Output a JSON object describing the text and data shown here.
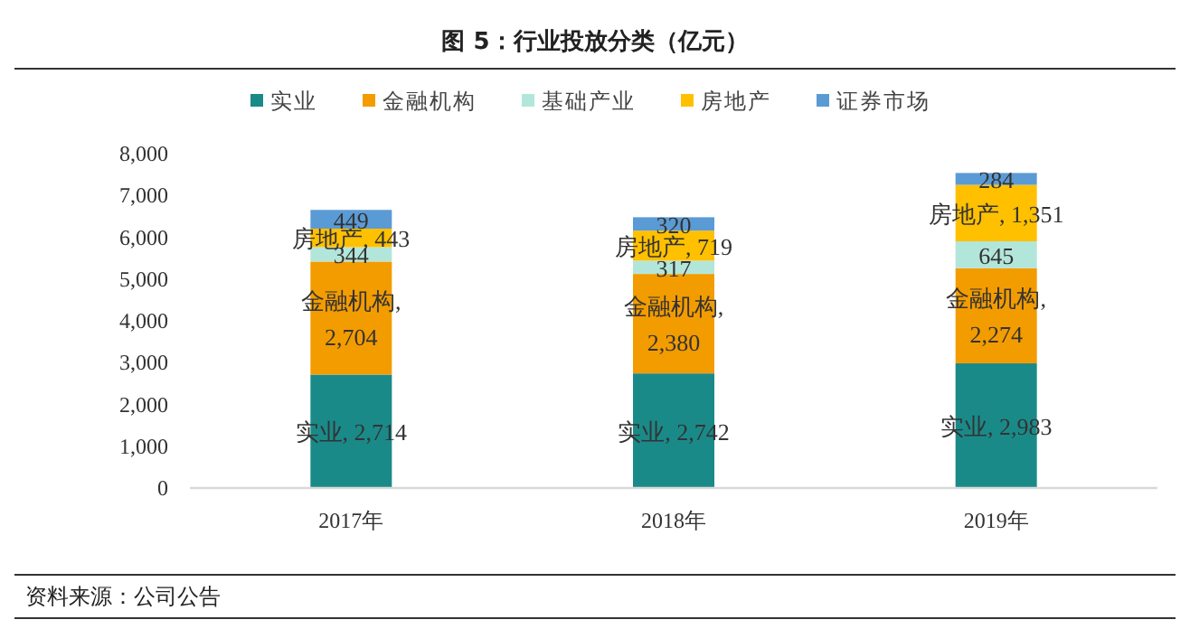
{
  "chart_data": {
    "type": "bar",
    "stacked": true,
    "title": "图 5：行业投放分类（亿元）",
    "categories": [
      "2017年",
      "2018年",
      "2019年"
    ],
    "series": [
      {
        "name": "实业",
        "color": "#1a8a89",
        "values": [
          2714,
          2742,
          2983
        ],
        "value_labels": [
          "实业, 2,714",
          "实业, 2,742",
          "实业, 2,983"
        ]
      },
      {
        "name": "金融机构",
        "color": "#f39c00",
        "values": [
          2704,
          2380,
          2274
        ],
        "value_labels": [
          "金融机构,\n2,704",
          "金融机构,\n2,380",
          "金融机构,\n2,274"
        ]
      },
      {
        "name": "基础产业",
        "color": "#b3e6da",
        "values": [
          344,
          317,
          645
        ],
        "value_labels": [
          "344",
          "317",
          "645"
        ]
      },
      {
        "name": "房地产",
        "color": "#ffc000",
        "values": [
          443,
          719,
          1351
        ],
        "value_labels": [
          "房地产, 443",
          "房地产, 719",
          "房地产, 1,351"
        ]
      },
      {
        "name": "证券市场",
        "color": "#5b9bd5",
        "values": [
          449,
          320,
          284
        ],
        "value_labels": [
          "449",
          "320",
          "284"
        ]
      }
    ],
    "ylim": [
      0,
      8000
    ],
    "yticks": [
      {
        "value": 0,
        "label": "0"
      },
      {
        "value": 1000,
        "label": "1,000"
      },
      {
        "value": 2000,
        "label": "2,000"
      },
      {
        "value": 3000,
        "label": "3,000"
      },
      {
        "value": 4000,
        "label": "4,000"
      },
      {
        "value": 5000,
        "label": "5,000"
      },
      {
        "value": 6000,
        "label": "6,000"
      },
      {
        "value": 7000,
        "label": "7,000"
      },
      {
        "value": 8000,
        "label": "8,000"
      }
    ],
    "legend": "top",
    "grid": false,
    "annotations": [
      "资料来源：公司公告"
    ]
  }
}
